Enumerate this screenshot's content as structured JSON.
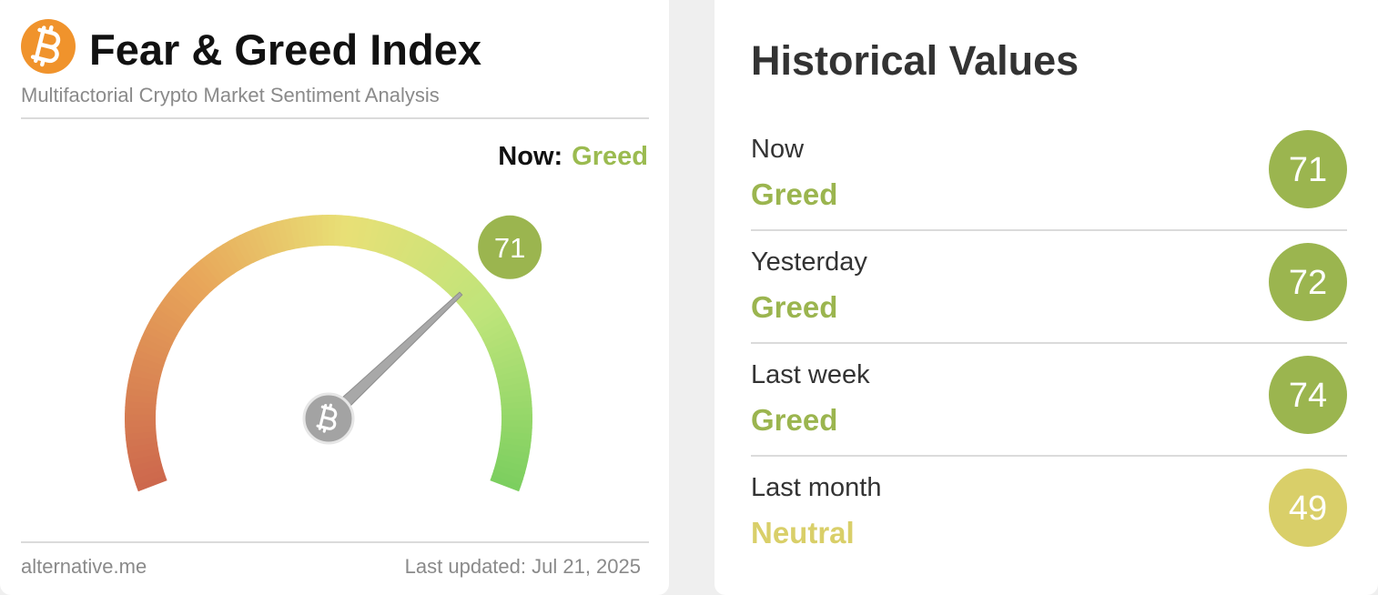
{
  "header": {
    "title": "Fear & Greed Index",
    "subtitle": "Multifactorial Crypto Market Sentiment Analysis"
  },
  "now": {
    "label": "Now:",
    "status": "Greed",
    "color": "#9bbb50"
  },
  "gauge": {
    "value": 71,
    "scale": [
      0,
      100
    ],
    "color": "#9bb54f"
  },
  "footer": {
    "source": "alternative.me",
    "updated": "Last updated: Jul 21, 2025"
  },
  "historical": {
    "title": "Historical Values",
    "items": [
      {
        "label": "Now",
        "status": "Greed",
        "value": 71,
        "color": "#9bb54f"
      },
      {
        "label": "Yesterday",
        "status": "Greed",
        "value": 72,
        "color": "#9bb54f"
      },
      {
        "label": "Last week",
        "status": "Greed",
        "value": 74,
        "color": "#9bb54f"
      },
      {
        "label": "Last month",
        "status": "Neutral",
        "value": 49,
        "color": "#d9cf69"
      }
    ]
  }
}
